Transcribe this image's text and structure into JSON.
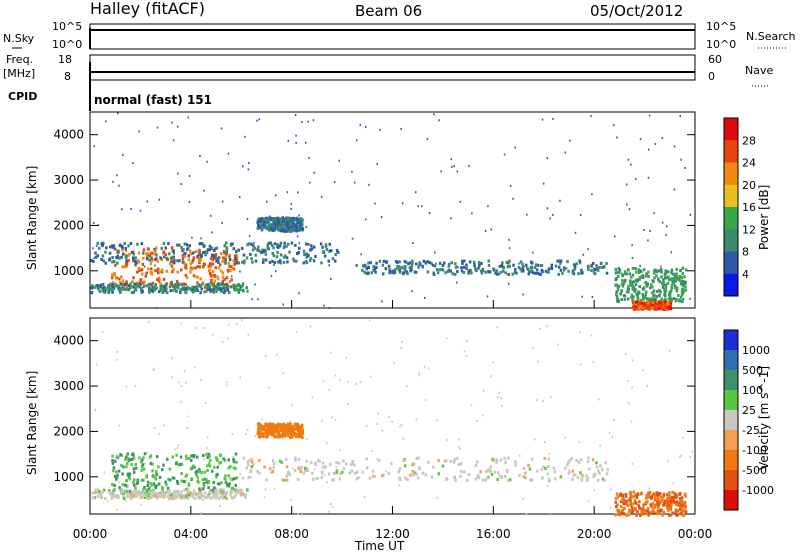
{
  "header": {
    "title": "Halley (fitACF)",
    "beam": "Beam 06",
    "date": "05/Oct/2012"
  },
  "status_panels": {
    "nsky_label": "N.Sky",
    "nsearch_label": "N.Search",
    "freq_label_top": "Freq.",
    "freq_label_unit": "[MHz]",
    "nave_label": "Nave",
    "cpid_label": "CPID",
    "cpid_value": "normal (fast) 151",
    "nsky_ticks": [
      "10^5",
      "10^0"
    ],
    "nsearch_ticks": [
      "10^5",
      "10^0"
    ],
    "freq_ticks": [
      "18",
      "8"
    ],
    "nave_ticks": [
      "60",
      "0"
    ]
  },
  "chart_data": [
    {
      "type": "heatmap",
      "name": "power",
      "ylabel": "Slant Range [km]",
      "y_ticks": [
        1000,
        2000,
        3000,
        4000
      ],
      "ylim": [
        180,
        4500
      ],
      "colorbar_label": "Power [dB]",
      "colorbar_ticks": [
        "4",
        "8",
        "12",
        "16",
        "20",
        "24",
        "28"
      ],
      "colors": [
        "#0a1ae6",
        "#2f5aa6",
        "#3a8a6e",
        "#37a84a",
        "#e8c020",
        "#f08a10",
        "#e84410",
        "#dd0b0b"
      ],
      "blobs": [
        {
          "t": [
            0.8,
            5.8
          ],
          "r": [
            650,
            1550
          ],
          "val": 22,
          "note": "dense"
        },
        {
          "t": [
            0.0,
            6.2
          ],
          "r": [
            550,
            750
          ],
          "val": 8
        },
        {
          "t": [
            0.0,
            9.8
          ],
          "r": [
            1200,
            1650
          ],
          "val": 6
        },
        {
          "t": [
            6.6,
            8.4
          ],
          "r": [
            1900,
            2200
          ],
          "val": 6
        },
        {
          "t": [
            10.5,
            20.5
          ],
          "r": [
            950,
            1250
          ],
          "val": 6
        },
        {
          "t": [
            20.8,
            23.6
          ],
          "r": [
            350,
            1100
          ],
          "val": 10
        },
        {
          "t": [
            21.5,
            23.0
          ],
          "r": [
            180,
            350
          ],
          "val": 24
        }
      ]
    },
    {
      "type": "heatmap",
      "name": "velocity",
      "ylabel": "Slant Range [km]",
      "y_ticks": [
        1000,
        2000,
        3000,
        4000
      ],
      "ylim": [
        180,
        4500
      ],
      "colorbar_label": "Velocity [m s^-1]",
      "colorbar_ticks": [
        "1000",
        "500",
        "100",
        "25",
        "-25",
        "-100",
        "-500",
        "-1000"
      ],
      "colors": [
        "#1a2fd6",
        "#2f6fb0",
        "#3f8f6a",
        "#55c840",
        "#c8c8c0",
        "#f0a050",
        "#f07a10",
        "#e05010",
        "#dd0b0b"
      ],
      "blobs": [
        {
          "t": [
            0.8,
            5.8
          ],
          "r": [
            650,
            1550
          ],
          "val": 100
        },
        {
          "t": [
            0.0,
            6.2
          ],
          "r": [
            550,
            750
          ],
          "val": 0
        },
        {
          "t": [
            6.6,
            8.4
          ],
          "r": [
            1900,
            2200
          ],
          "val": -300
        },
        {
          "t": [
            6.0,
            20.5
          ],
          "r": [
            950,
            1450
          ],
          "val": 0
        },
        {
          "t": [
            20.8,
            23.6
          ],
          "r": [
            180,
            700
          ],
          "val": -500
        }
      ]
    }
  ],
  "x_axis": {
    "label": "Time UT",
    "ticks": [
      "00:00",
      "04:00",
      "08:00",
      "12:00",
      "16:00",
      "20:00",
      "00:00"
    ]
  }
}
